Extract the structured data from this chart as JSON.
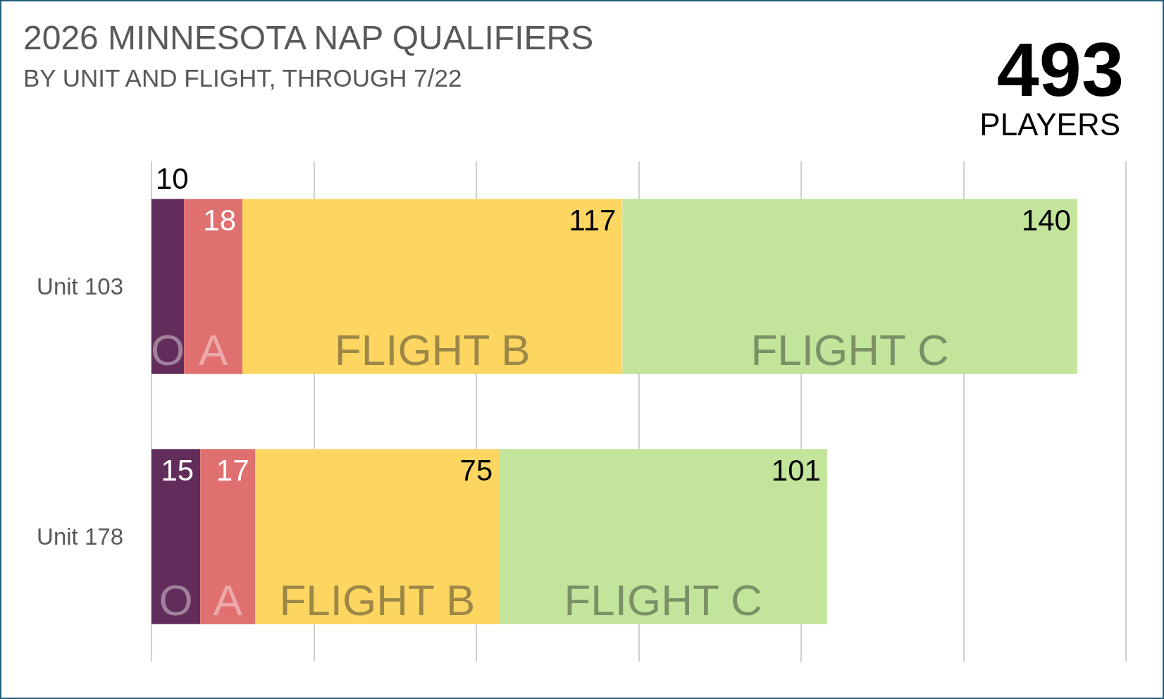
{
  "chart_data": {
    "type": "bar",
    "orientation": "horizontal",
    "stacked": true,
    "title": "2026 MINNESOTA NAP QUALIFIERS",
    "subtitle": "BY UNIT AND FLIGHT, THROUGH 7/22",
    "annotations": [
      "493",
      "PLAYERS"
    ],
    "categories": [
      "Unit 103",
      "Unit 178"
    ],
    "series": [
      {
        "name": "O",
        "color": "#622d5a",
        "values": [
          10,
          15
        ]
      },
      {
        "name": "A",
        "color": "#e07070",
        "values": [
          18,
          17
        ]
      },
      {
        "name": "FLIGHT B",
        "color": "#fdd662",
        "values": [
          117,
          75
        ]
      },
      {
        "name": "FLIGHT C",
        "color": "#c2e59b",
        "values": [
          140,
          101
        ]
      }
    ],
    "xlim": [
      0,
      300
    ],
    "xticks": [
      {
        "value": 0,
        "label": null
      },
      {
        "value": 50,
        "label": null
      },
      {
        "value": 100,
        "label": null
      },
      {
        "value": 150,
        "label": null
      },
      {
        "value": 200,
        "label": null
      },
      {
        "value": 250,
        "label": null
      },
      {
        "value": 300,
        "label": null
      }
    ],
    "grid": "x",
    "data_labels": true,
    "tick_labels": "y"
  }
}
